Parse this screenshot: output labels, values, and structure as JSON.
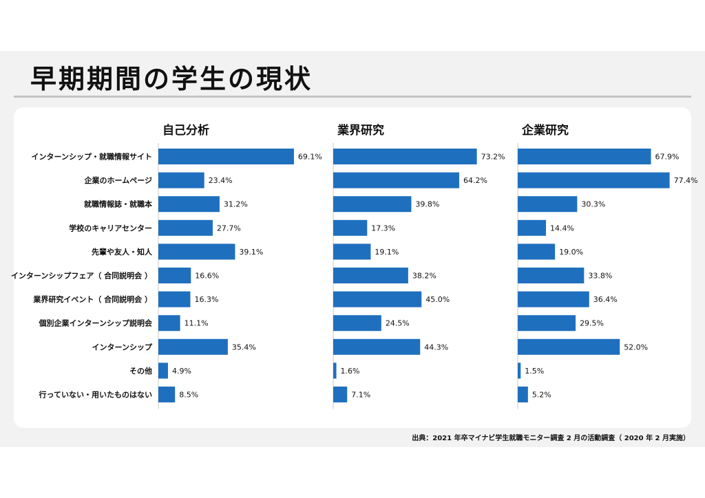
{
  "title": "早期期間の学生の現状",
  "source": "出典：2021 年卒マイナビ学生就職モニター調査 2 月の活動調査（ 2020 年 2 月実施）",
  "colors": {
    "bar": "#1f6fbf",
    "background": "#f2f2f2",
    "card": "#ffffff"
  },
  "chart_data": {
    "type": "bar",
    "orientation": "horizontal",
    "categories": [
      "インターンシップ・就職情報サイト",
      "企業のホームページ",
      "就職情報誌・就職本",
      "学校のキャリアセンター",
      "先輩や友人・知人",
      "インターンシップフェア（ 合同説明会 ）",
      "業界研究イベント（ 合同説明会 ）",
      "個別企業インターンシップ説明会",
      "インターンシップ",
      "その他",
      "行っていない・用いたものはない"
    ],
    "series": [
      {
        "name": "自己分析",
        "values": [
          69.1,
          23.4,
          31.2,
          27.7,
          39.1,
          16.6,
          16.3,
          11.1,
          35.4,
          4.9,
          8.5
        ]
      },
      {
        "name": "業界研究",
        "values": [
          73.2,
          64.2,
          39.8,
          17.3,
          19.1,
          38.2,
          45.0,
          24.5,
          44.3,
          1.6,
          7.1
        ]
      },
      {
        "name": "企業研究",
        "values": [
          67.9,
          77.4,
          30.3,
          14.4,
          19.0,
          33.8,
          36.4,
          29.5,
          52.0,
          1.5,
          5.2
        ]
      }
    ],
    "labels": [
      [
        "69.1%",
        "23.4%",
        "31.2%",
        "27.7%",
        "39.1%",
        "16.6%",
        "16.3%",
        "11.1%",
        "35.4%",
        "4.9%",
        "8.5%"
      ],
      [
        "73.2%",
        "64.2%",
        "39.8%",
        "17.3%",
        "19.1%",
        "38.2%",
        "45.0%",
        "24.5%",
        "44.3%",
        "1.6%",
        "7.1%"
      ],
      [
        "67.9%",
        "77.4%",
        "30.3%",
        "14.4%",
        "19.0%",
        "33.8%",
        "36.4%",
        "29.5%",
        "52.0%",
        "1.5%",
        "5.2%"
      ]
    ],
    "value_unit": "%",
    "grid": false,
    "legend": "none"
  }
}
